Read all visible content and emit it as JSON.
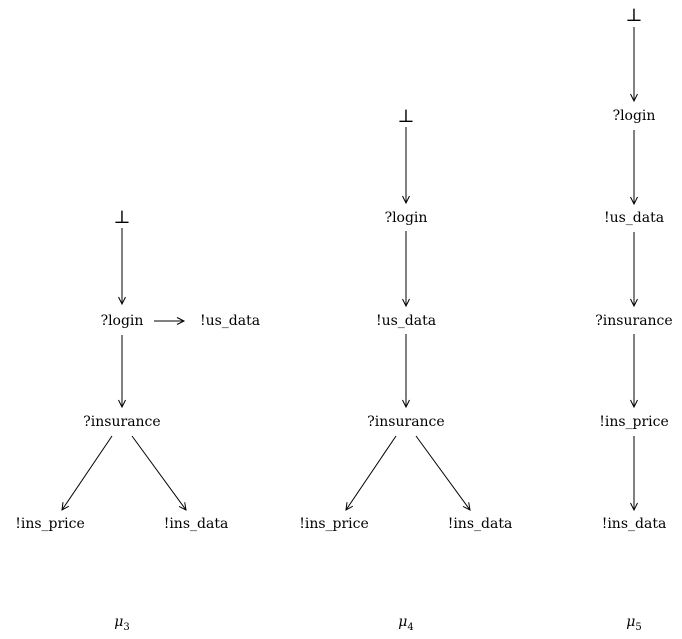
{
  "diagrams": [
    {
      "caption": {
        "symbol": "μ",
        "sub": "3"
      },
      "nodes": {
        "bottom": "⊥",
        "login": "?login",
        "us_data": "!us_data",
        "insurance": "?insurance",
        "ins_price": "!ins_price",
        "ins_data": "!ins_data"
      }
    },
    {
      "caption": {
        "symbol": "μ",
        "sub": "4"
      },
      "nodes": {
        "bottom": "⊥",
        "login": "?login",
        "us_data": "!us_data",
        "insurance": "?insurance",
        "ins_price": "!ins_price",
        "ins_data": "!ins_data"
      }
    },
    {
      "caption": {
        "symbol": "μ",
        "sub": "5"
      },
      "nodes": {
        "bottom": "⊥",
        "login": "?login",
        "us_data": "!us_data",
        "insurance": "?insurance",
        "ins_price": "!ins_price",
        "ins_data": "!ins_data"
      }
    }
  ]
}
